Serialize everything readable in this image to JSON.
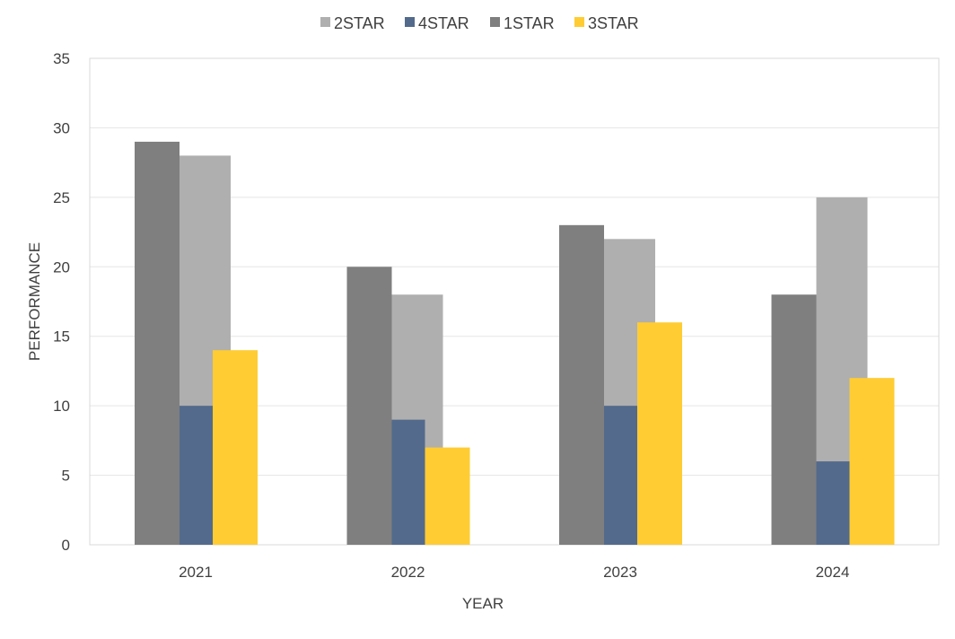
{
  "chart_data": {
    "type": "bar",
    "xlabel": "YEAR",
    "ylabel": "PERFORMANCE",
    "ylim": [
      0,
      35
    ],
    "yticks": [
      0,
      5,
      10,
      15,
      20,
      25,
      30,
      35
    ],
    "categories": [
      "2021",
      "2022",
      "2023",
      "2024"
    ],
    "grid": true,
    "legend_position": "top",
    "legend_order": [
      "2STAR",
      "4STAR",
      "1STAR",
      "3STAR"
    ],
    "series": [
      {
        "name": "1STAR",
        "values": [
          29,
          20,
          23,
          18
        ],
        "color": "#7f7f7f"
      },
      {
        "name": "2STAR",
        "values": [
          28,
          18,
          22,
          25
        ],
        "color": "#afafaf"
      },
      {
        "name": "4STAR",
        "values": [
          10,
          9,
          10,
          6
        ],
        "color": "#536a8c"
      },
      {
        "name": "3STAR",
        "values": [
          14,
          7,
          16,
          12
        ],
        "color": "#ffcc33"
      }
    ]
  }
}
